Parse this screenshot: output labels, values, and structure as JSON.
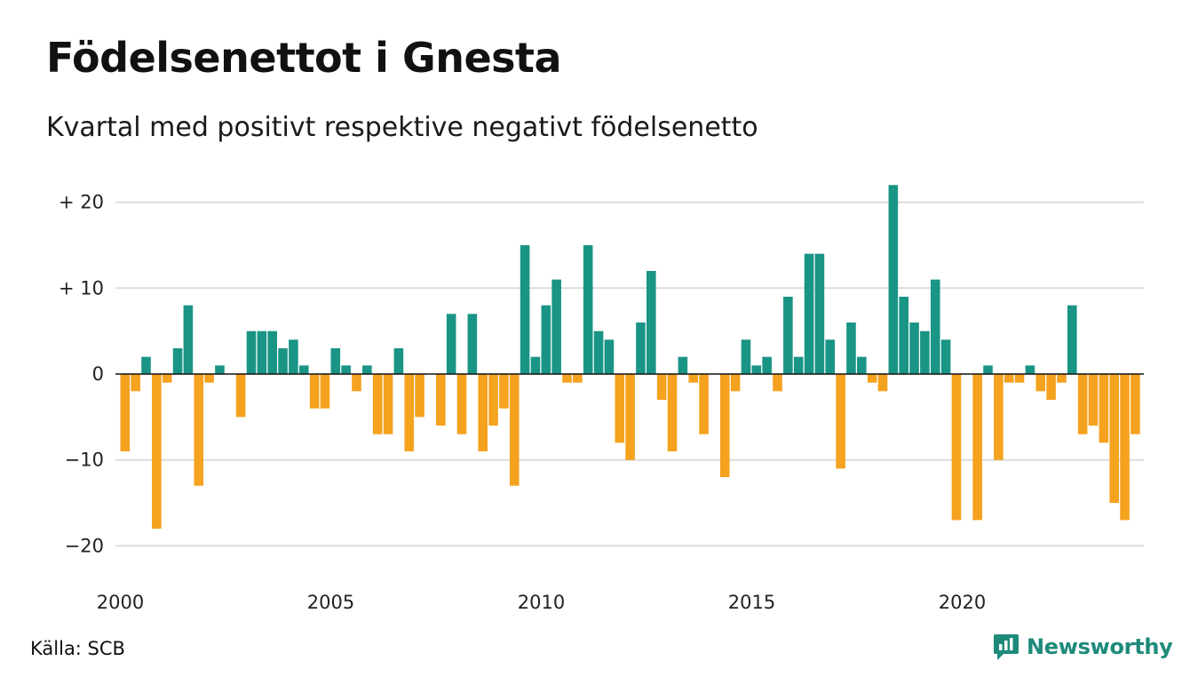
{
  "header": {
    "title": "Födelsenettot i Gnesta",
    "subtitle": "Kvartal med positivt respektive negativt födelsenetto"
  },
  "footer": {
    "source": "Källa: SCB",
    "brand": "Newsworthy",
    "brand_icon": "newsworthy-logo-icon"
  },
  "colors": {
    "positive": "#1a9585",
    "negative": "#f5a21f",
    "grid": "#dcdcdc",
    "brand": "#1e8a7a"
  },
  "chart_data": {
    "type": "bar",
    "title": "Födelsenettot i Gnesta",
    "subtitle": "Kvartal med positivt respektive negativt födelsenetto",
    "x_start": "2000 Q1",
    "x_ticks": [
      "2000",
      "2005",
      "2010",
      "2015",
      "2020"
    ],
    "y_ticks": [
      "−20",
      "−10",
      "0",
      "+ 10",
      "+ 20"
    ],
    "y_tick_values": [
      -20,
      -10,
      0,
      10,
      20
    ],
    "ylim": [
      -22,
      22
    ],
    "grid": true,
    "values": [
      -9,
      -2,
      2,
      -18,
      -1,
      3,
      8,
      -13,
      -1,
      1,
      0,
      -5,
      5,
      5,
      5,
      3,
      4,
      1,
      -4,
      -4,
      3,
      1,
      -2,
      1,
      -7,
      -7,
      3,
      -9,
      -5,
      0,
      -6,
      7,
      -7,
      7,
      -9,
      -6,
      -4,
      -13,
      15,
      2,
      8,
      11,
      -1,
      -1,
      15,
      5,
      4,
      -8,
      -10,
      6,
      12,
      -3,
      -9,
      2,
      -1,
      -7,
      0,
      -12,
      -2,
      4,
      1,
      2,
      -2,
      9,
      2,
      14,
      14,
      4,
      -11,
      6,
      2,
      -1,
      -2,
      22,
      9,
      6,
      5,
      11,
      4,
      -17,
      0,
      -17,
      1,
      -10,
      -1,
      -1,
      1,
      -2,
      -3,
      -1,
      8,
      -7,
      -6,
      -8,
      -15,
      -17,
      -7
    ]
  }
}
